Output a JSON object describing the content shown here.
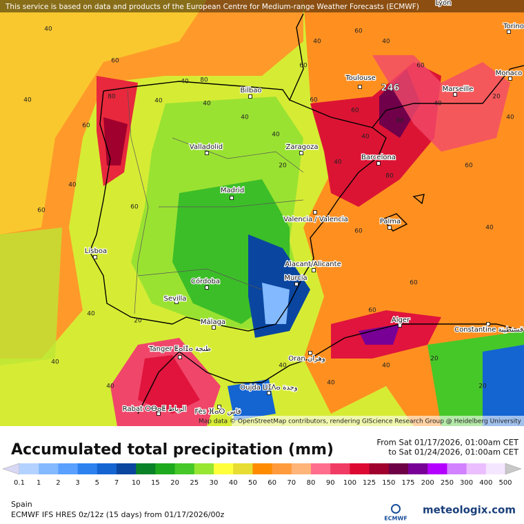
{
  "header": {
    "attribution": "This service is based on data and products of the European Centre for Medium-range Weather Forecasts (ECMWF)"
  },
  "map": {
    "max_value": "246",
    "attribution": "Map data © OpenStreetMap contributors, rendering GIScience Research Group @ Heidelberg University",
    "cities": [
      "Lyon",
      "Torino",
      "Toulouse",
      "Monaco",
      "Marseille",
      "Bilbao",
      "Valladolid",
      "Zaragoza",
      "Barcelona",
      "Madrid",
      "Valencia / Valencia",
      "Palma",
      "Lisboa",
      "Alacant/Alicante",
      "Murcia",
      "Córdoba",
      "Sevilla",
      "Málaga",
      "Alger",
      "Constantine قسنطينة",
      "Tanger ⵟⴰⵏⵊⴰ طنجة",
      "Oran وهران",
      "Oujda ⵡⵊⴷⴰ وجدة",
      "Rabat ⵔⴱⴰⵟ الرباط",
      "Fès ⴼⴰⵙ فاس"
    ],
    "contour_labels": [
      40,
      60,
      40,
      80,
      60,
      40,
      60,
      40,
      40,
      60,
      40,
      80,
      40,
      40,
      40,
      60,
      20,
      40,
      40,
      60,
      60,
      40,
      60,
      40,
      40,
      80,
      60,
      40,
      20,
      60,
      40,
      40,
      60,
      60,
      40,
      20,
      60,
      20,
      40,
      40,
      60,
      20,
      80,
      40
    ]
  },
  "legend": {
    "title": "Accumulated total precipitation (mm)",
    "period_from": "From Sat 01/17/2026, 01:00am CET",
    "period_to": "to Sat 01/24/2026, 01:00am CET",
    "ticks": [
      0.1,
      1,
      2,
      3,
      5,
      7,
      10,
      15,
      20,
      25,
      30,
      40,
      50,
      60,
      70,
      80,
      90,
      100,
      125,
      150,
      175,
      200,
      250,
      300,
      400,
      500
    ],
    "colors": [
      "#d8d8f4",
      "#b4d2ff",
      "#82b9ff",
      "#5aa0ff",
      "#2d82f0",
      "#1464d2",
      "#0a46a0",
      "#0a8228",
      "#1eaa1e",
      "#46c828",
      "#96e632",
      "#ffff3c",
      "#e6dc32",
      "#ff8c00",
      "#ff9b3c",
      "#ffb478",
      "#ff6e8c",
      "#f03c64",
      "#dc0a32",
      "#a0002d",
      "#6e0046",
      "#780096",
      "#b400ff",
      "#d282ff",
      "#ebbeff",
      "#f5e6ff",
      "#c8c8c8"
    ]
  },
  "footer": {
    "region": "Spain",
    "model": "ECMWF IFS HRES 0z/12z (15 days) from  01/17/2026/00z",
    "logo": "ECMWF",
    "brand": "meteologix.com"
  }
}
